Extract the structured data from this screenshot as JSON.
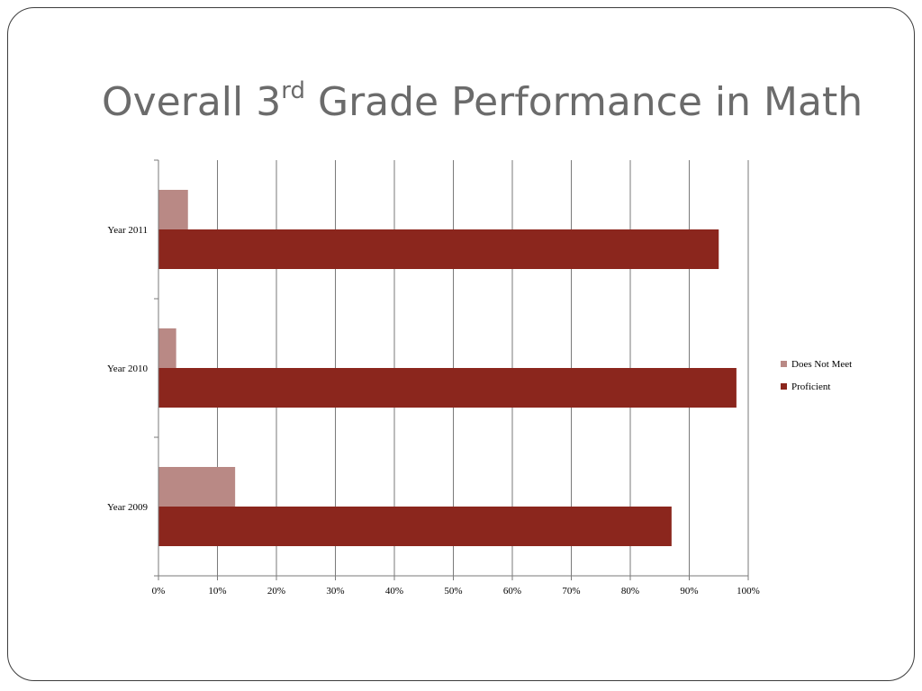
{
  "slide": {
    "title_prefix": "Overall 3",
    "title_superscript": "rd",
    "title_suffix": " Grade Performance in Math"
  },
  "chart_data": {
    "type": "bar",
    "orientation": "horizontal",
    "categories": [
      "Year 2009",
      "Year 2010",
      "Year 2011"
    ],
    "series": [
      {
        "name": "Does Not Meet",
        "values": [
          13,
          3,
          5
        ],
        "color": "#b98985"
      },
      {
        "name": "Proficient",
        "values": [
          87,
          98,
          95
        ],
        "color": "#8b261d"
      }
    ],
    "xlim": [
      0,
      100
    ],
    "x_ticks": [
      "0%",
      "10%",
      "20%",
      "30%",
      "40%",
      "50%",
      "60%",
      "70%",
      "80%",
      "90%",
      "100%"
    ],
    "grid": "vertical",
    "legend_position": "right"
  }
}
